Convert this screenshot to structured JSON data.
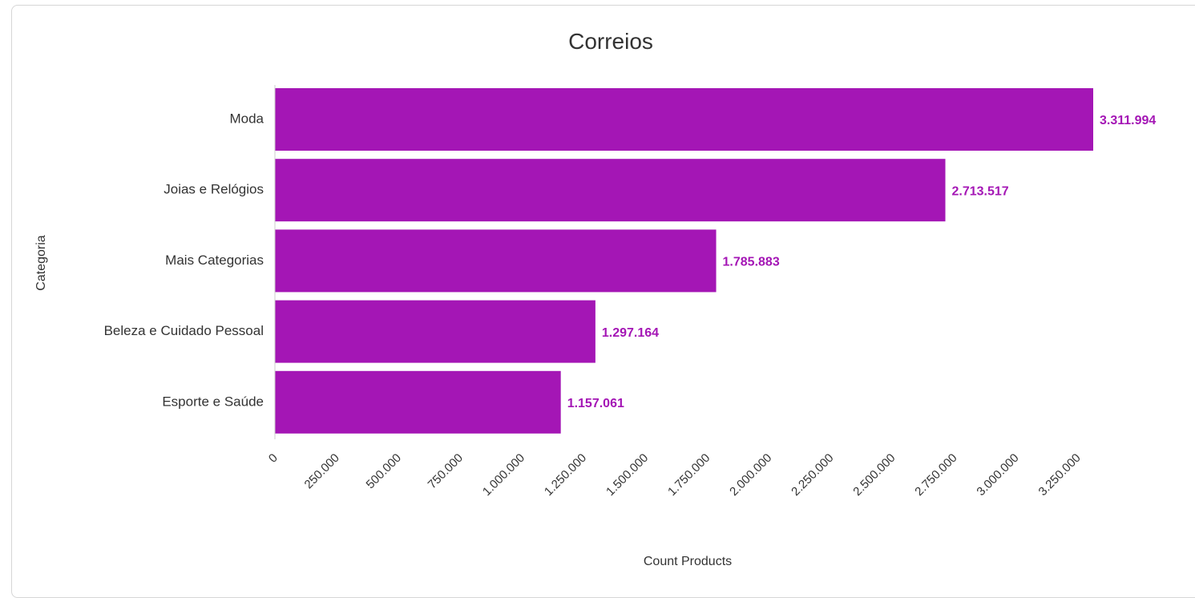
{
  "chart_data": {
    "type": "bar",
    "orientation": "horizontal",
    "title": "Correios",
    "xlabel": "Count Products",
    "ylabel": "Categoria",
    "categories": [
      "Moda",
      "Joias e Relógios",
      "Mais Categorias",
      "Beleza e Cuidado Pessoal",
      "Esporte e Saúde"
    ],
    "values": [
      3311994,
      2713517,
      1785883,
      1297164,
      1157061
    ],
    "data_labels": [
      "3.311.994",
      "2.713.517",
      "1.785.883",
      "1.297.164",
      "1.157.061"
    ],
    "xlim": [
      0,
      3311994
    ],
    "x_ticks": [
      0,
      250000,
      500000,
      750000,
      1000000,
      1250000,
      1500000,
      1750000,
      2000000,
      2250000,
      2500000,
      2750000,
      3000000,
      3250000
    ],
    "x_tick_labels": [
      "0",
      "250.000",
      "500.000",
      "750.000",
      "1.000.000",
      "1.250.000",
      "1.500.000",
      "1.750.000",
      "2.000.000",
      "2.250.000",
      "2.500.000",
      "2.750.000",
      "3.000.000",
      "3.250.000"
    ],
    "grid": false,
    "legend": "none",
    "bar_color": "#a416b5",
    "label_color": "#a416b5"
  }
}
